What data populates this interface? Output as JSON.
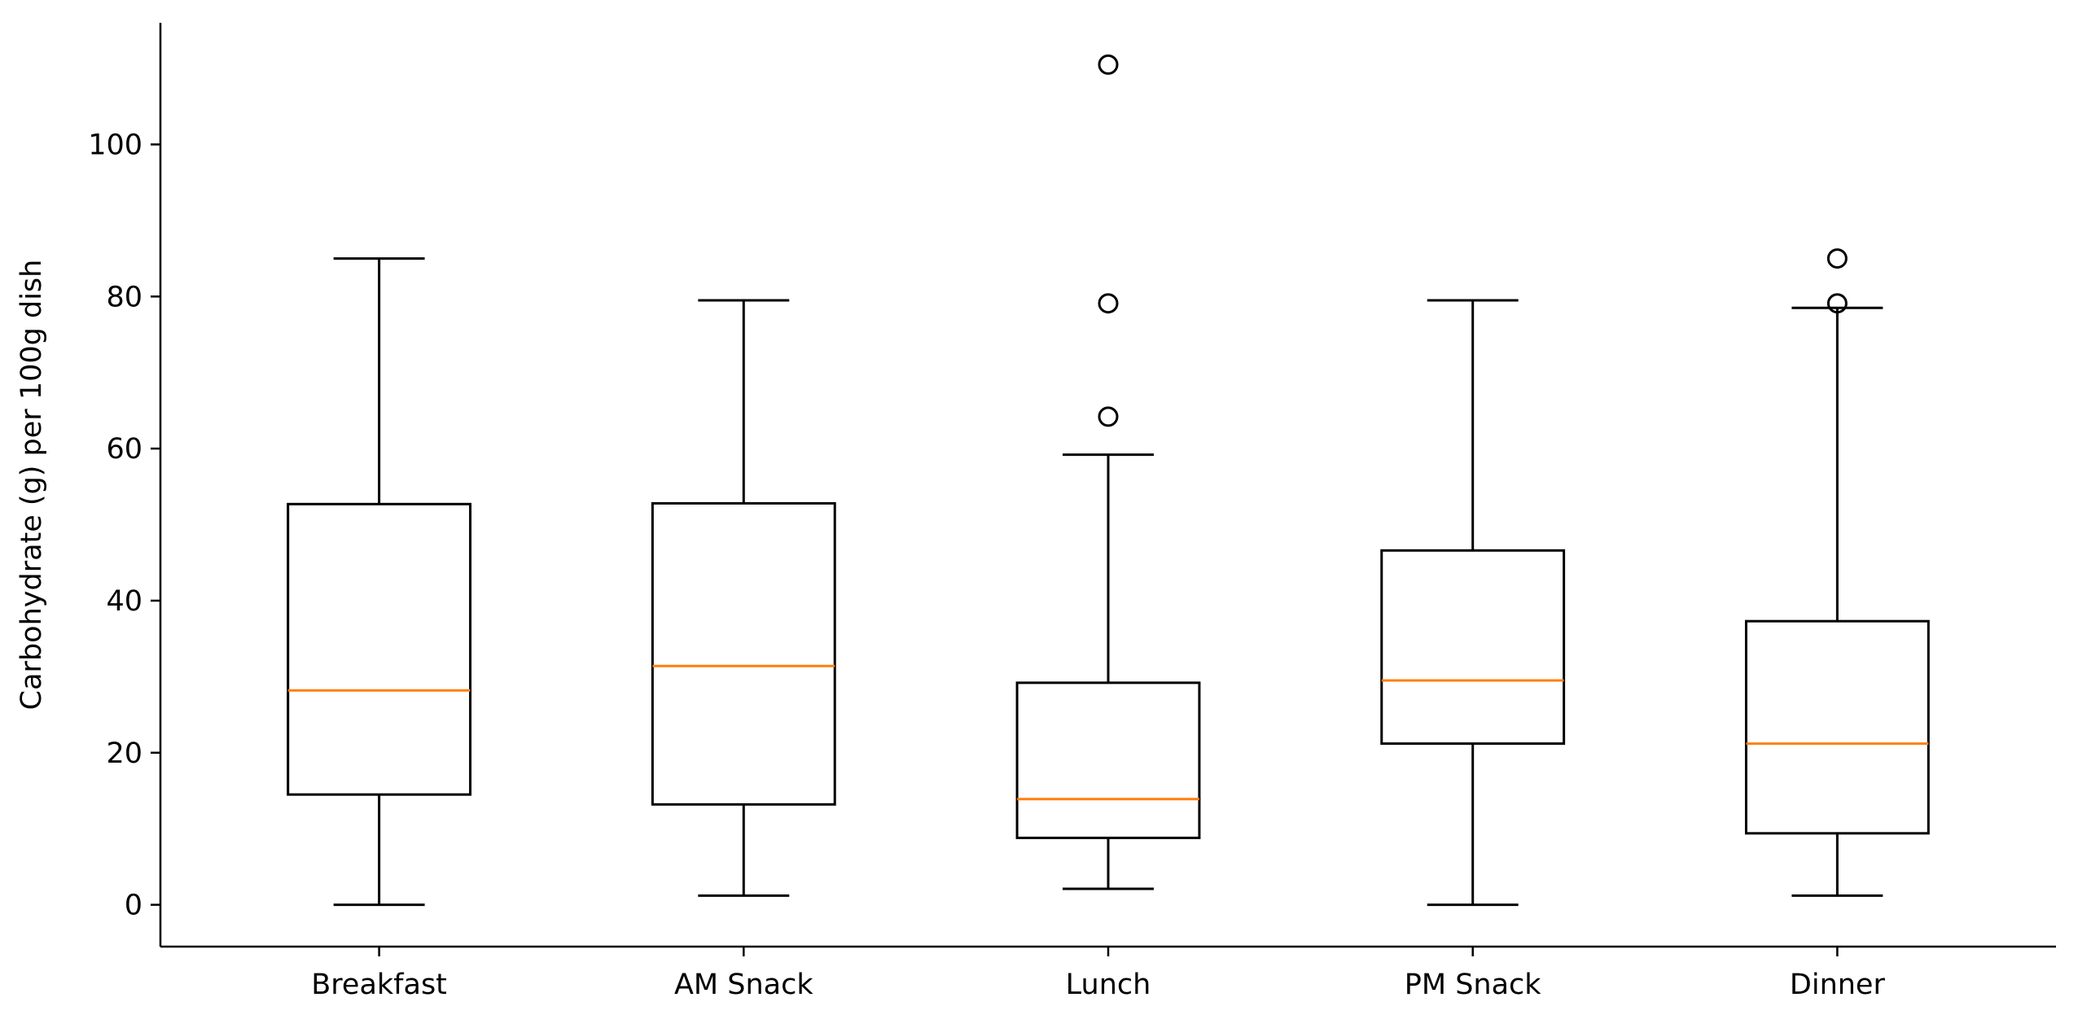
{
  "chart_data": {
    "type": "box",
    "title": "",
    "xlabel": "",
    "ylabel": "Carbohydrate (g) per 100g dish",
    "ylim": [
      -5.5,
      116
    ],
    "yticks": [
      0,
      20,
      40,
      60,
      80,
      100
    ],
    "ytick_labels": [
      "0",
      "20",
      "40",
      "60",
      "80",
      "100"
    ],
    "grid": false,
    "legend": "none",
    "colors": {
      "box": "#000000",
      "median": "#ff7f0e",
      "flier": "#000000"
    },
    "categories": [
      "Breakfast",
      "AM Snack",
      "Lunch",
      "PM Snack",
      "Dinner"
    ],
    "boxes": [
      {
        "label": "Breakfast",
        "whisker_low": 0.0,
        "q1": 14.5,
        "median": 28.2,
        "q3": 52.7,
        "whisker_high": 85.0,
        "outliers": []
      },
      {
        "label": "AM Snack",
        "whisker_low": 1.2,
        "q1": 13.2,
        "median": 31.4,
        "q3": 52.8,
        "whisker_high": 79.5,
        "outliers": []
      },
      {
        "label": "Lunch",
        "whisker_low": 2.1,
        "q1": 8.8,
        "median": 13.9,
        "q3": 29.2,
        "whisker_high": 59.2,
        "outliers": [
          64.2,
          79.1,
          110.5
        ]
      },
      {
        "label": "PM Snack",
        "whisker_low": 0.0,
        "q1": 21.2,
        "median": 29.5,
        "q3": 46.6,
        "whisker_high": 79.5,
        "outliers": []
      },
      {
        "label": "Dinner",
        "whisker_low": 1.2,
        "q1": 9.4,
        "median": 21.2,
        "q3": 37.3,
        "whisker_high": 78.5,
        "outliers": [
          79.1,
          85.0
        ]
      }
    ]
  }
}
